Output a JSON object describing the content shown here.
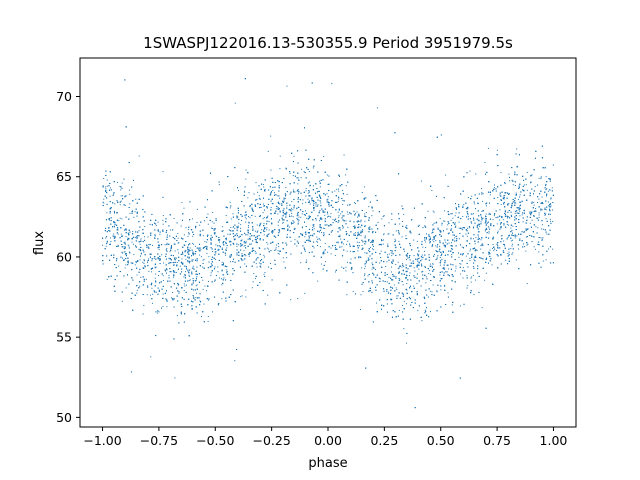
{
  "chart_data": {
    "type": "scatter",
    "title": "1SWASPJ122016.13-530355.9 Period 3951979.5s",
    "xlabel": "phase",
    "ylabel": "flux",
    "xlim": [
      -1.1,
      1.1
    ],
    "ylim": [
      49.4,
      72.4
    ],
    "xticks": [
      -1.0,
      -0.75,
      -0.5,
      -0.25,
      0.0,
      0.25,
      0.5,
      0.75,
      1.0
    ],
    "xtick_labels": [
      "−1.00",
      "−0.75",
      "−0.50",
      "−0.25",
      "0.00",
      "0.25",
      "0.50",
      "0.75",
      "1.00"
    ],
    "yticks": [
      50,
      55,
      60,
      65,
      70
    ],
    "ytick_labels": [
      "50",
      "55",
      "60",
      "65",
      "70"
    ],
    "grid": false,
    "legend": "none",
    "marker_color": "#1f77b4",
    "marker_size": 1,
    "phase_profile": {
      "x": [
        0.0,
        0.05,
        0.1,
        0.15,
        0.2,
        0.25,
        0.3,
        0.35,
        0.4,
        0.45,
        0.5,
        0.55,
        0.6,
        0.65,
        0.7,
        0.75,
        0.8,
        0.85,
        0.9,
        0.95,
        1.0
      ],
      "y": [
        62.5,
        62.0,
        61.3,
        60.8,
        60.2,
        59.8,
        59.5,
        59.3,
        59.4,
        59.7,
        60.1,
        60.6,
        61.0,
        61.3,
        61.8,
        62.3,
        62.6,
        62.8,
        62.9,
        62.7,
        62.5
      ]
    },
    "scatter_sigma": 1.6,
    "n_points": 9000
  },
  "colors": {
    "background": "#ffffff",
    "axes": "#000000",
    "points": "#1f77b4"
  }
}
